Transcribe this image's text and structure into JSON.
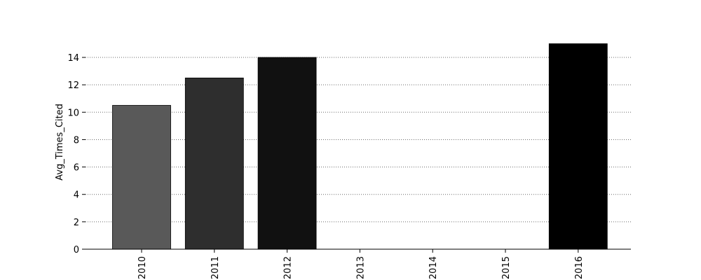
{
  "chart_data": {
    "type": "bar",
    "title": "",
    "xlabel": "",
    "ylabel": "Avg_Times_Cited",
    "categories": [
      "2010",
      "2011",
      "2012",
      "2013",
      "2014",
      "2015",
      "2016"
    ],
    "values": [
      10.5,
      12.5,
      14.0,
      0,
      0,
      0,
      15.0
    ],
    "bar_colors": [
      "#595959",
      "#2e2e2e",
      "#111111",
      "#ffffff",
      "#ffffff",
      "#ffffff",
      "#000000"
    ],
    "ylim": [
      0,
      15
    ],
    "yticks": [
      0,
      2,
      4,
      6,
      8,
      10,
      12,
      14
    ],
    "grid": "y-dotted",
    "legend": "none"
  }
}
